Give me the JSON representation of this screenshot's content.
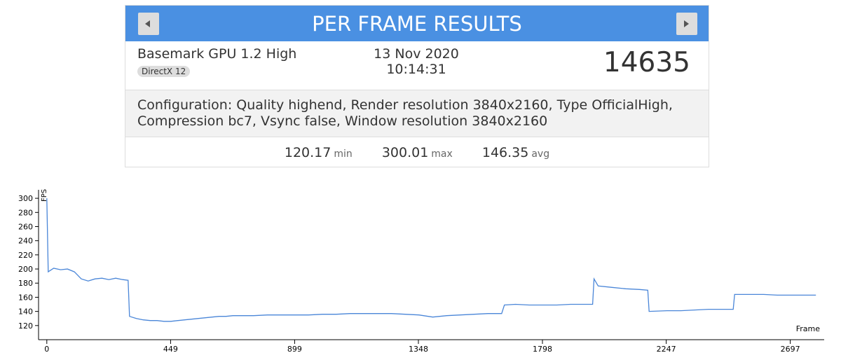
{
  "header": {
    "title": "PER FRAME RESULTS"
  },
  "result": {
    "test_name": "Basemark GPU 1.2 High",
    "api": "DirectX 12",
    "date": "13 Nov 2020",
    "time": "10:14:31",
    "score": 14635
  },
  "configuration": {
    "line1": "Configuration: Quality highend, Render resolution 3840x2160, Type OfficialHigh,",
    "line2": "Compression bc7, Vsync false, Window resolution 3840x2160"
  },
  "stats": [
    {
      "value": 120.17,
      "unit": "min"
    },
    {
      "value": 300.01,
      "unit": "max"
    },
    {
      "value": 146.35,
      "unit": "avg"
    }
  ],
  "chart_data": {
    "type": "line",
    "y_label": "FPS",
    "x_label": "Frame",
    "x": [
      0,
      5,
      25,
      50,
      75,
      100,
      125,
      150,
      175,
      200,
      225,
      250,
      275,
      295,
      300,
      325,
      350,
      375,
      400,
      425,
      450,
      475,
      500,
      525,
      550,
      575,
      600,
      625,
      650,
      675,
      700,
      750,
      800,
      850,
      900,
      950,
      1000,
      1050,
      1100,
      1150,
      1200,
      1250,
      1300,
      1350,
      1400,
      1450,
      1500,
      1550,
      1600,
      1650,
      1660,
      1700,
      1750,
      1800,
      1850,
      1900,
      1950,
      1980,
      1985,
      2000,
      2050,
      2100,
      2150,
      2180,
      2185,
      2250,
      2300,
      2350,
      2400,
      2450,
      2490,
      2495,
      2550,
      2600,
      2650,
      2700,
      2750,
      2790
    ],
    "series": [
      {
        "name": "FPS",
        "color": "#4a86d8",
        "values": [
          300,
          196,
          201,
          199,
          200,
          196,
          186,
          183,
          186,
          187,
          185,
          187,
          185,
          184,
          133,
          130,
          128,
          127,
          127,
          126,
          126,
          127,
          128,
          129,
          130,
          131,
          132,
          133,
          133,
          134,
          134,
          134,
          135,
          135,
          135,
          135,
          136,
          136,
          137,
          137,
          137,
          137,
          136,
          135,
          132,
          134,
          135,
          136,
          137,
          137,
          149,
          150,
          149,
          149,
          149,
          150,
          150,
          150,
          186,
          176,
          174,
          172,
          171,
          170,
          140,
          141,
          141,
          142,
          143,
          143,
          143,
          164,
          164,
          164,
          163,
          163,
          163,
          163
        ]
      }
    ],
    "xlim": [
      -30,
      2820
    ],
    "ylim": [
      100,
      312
    ],
    "xticks": [
      0,
      449,
      899,
      1348,
      1798,
      2247,
      2697
    ],
    "yticks": [
      120,
      140,
      160,
      180,
      200,
      220,
      240,
      260,
      280,
      300
    ]
  }
}
